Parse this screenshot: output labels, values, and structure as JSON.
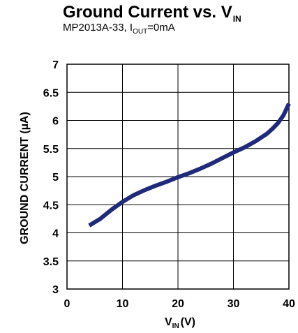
{
  "chart_data": {
    "type": "line",
    "title_main": "Ground Current vs. V",
    "title_sub": "IN",
    "subtitle_a": "MP2013A-33, I",
    "subtitle_sub": "OUT",
    "subtitle_b": "=0mA",
    "ylabel": "GROUND CURRENT (µA)",
    "xlabel_main": "V",
    "xlabel_sub": "IN",
    "xlabel_unit": "(V)",
    "xlim": [
      0,
      40
    ],
    "ylim": [
      3,
      7
    ],
    "x_ticks": [
      "0",
      "10",
      "20",
      "30",
      "40"
    ],
    "y_ticks": [
      "3",
      "3.5",
      "4",
      "4.5",
      "5",
      "5.5",
      "6",
      "6.5",
      "7"
    ],
    "grid": true,
    "series": [
      {
        "color": "#1f2a7a",
        "x": [
          4,
          6,
          8,
          10,
          12,
          14,
          16,
          18,
          20,
          22,
          24,
          26,
          28,
          30,
          32,
          34,
          36,
          37,
          38,
          39,
          40
        ],
        "y": [
          4.13,
          4.25,
          4.41,
          4.55,
          4.67,
          4.76,
          4.84,
          4.91,
          4.99,
          5.06,
          5.14,
          5.23,
          5.33,
          5.43,
          5.52,
          5.63,
          5.76,
          5.85,
          5.95,
          6.09,
          6.3
        ]
      }
    ]
  }
}
